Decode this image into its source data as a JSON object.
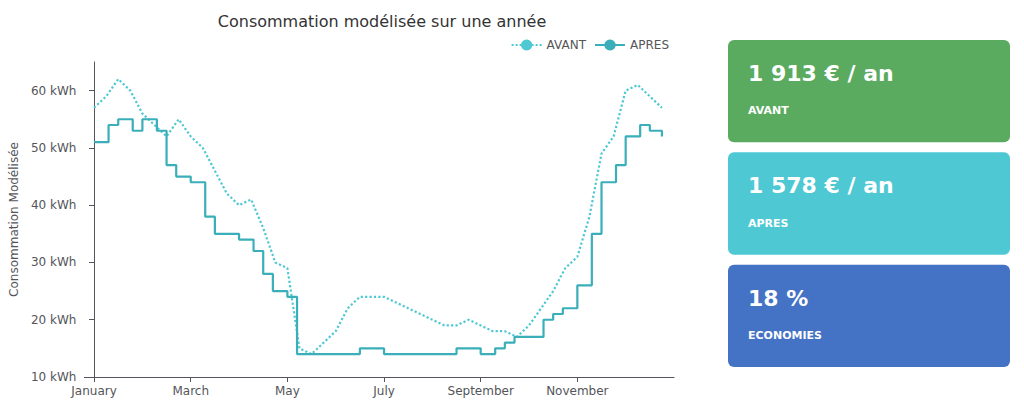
{
  "chart_data": {
    "type": "line",
    "title": "Consommation modélisée sur une année",
    "ylabel": "Consommation Modélisée",
    "xlim": [
      -0.2,
      12.0
    ],
    "xticks": [
      {
        "value": 0,
        "label": "January"
      },
      {
        "value": 2,
        "label": "March"
      },
      {
        "value": 4,
        "label": "May"
      },
      {
        "value": 6,
        "label": "July"
      },
      {
        "value": 8,
        "label": "September"
      },
      {
        "value": 10,
        "label": "November"
      }
    ],
    "ylim": [
      10,
      65
    ],
    "yticks": [
      {
        "value": 10,
        "label": "10 kWh"
      },
      {
        "value": 20,
        "label": "20 kWh"
      },
      {
        "value": 30,
        "label": "30 kWh"
      },
      {
        "value": 40,
        "label": "40 kWh"
      },
      {
        "value": 50,
        "label": "50 kWh"
      },
      {
        "value": 60,
        "label": "60 kWh"
      }
    ],
    "grid": false,
    "legend": "upper right",
    "series": [
      {
        "name": "AVANT",
        "type": "line",
        "line_style": "dotted",
        "color": "#4ec8d3",
        "x": [
          0,
          0.25,
          0.5,
          0.75,
          1.0,
          1.25,
          1.5,
          1.75,
          2.0,
          2.25,
          2.5,
          2.75,
          3.0,
          3.25,
          3.5,
          3.75,
          4.0,
          4.25,
          4.5,
          4.75,
          5.0,
          5.25,
          5.5,
          5.75,
          6.0,
          6.25,
          6.5,
          6.75,
          7.0,
          7.25,
          7.5,
          7.75,
          8.0,
          8.25,
          8.5,
          8.75,
          9.0,
          9.25,
          9.5,
          9.75,
          10.0,
          10.25,
          10.5,
          10.75,
          11.0,
          11.25,
          11.5,
          11.75
        ],
        "values": [
          57,
          59,
          62,
          60,
          56,
          54,
          52,
          55,
          52,
          50,
          46,
          42,
          40,
          41,
          36,
          30,
          29,
          15,
          14,
          16,
          18,
          22,
          24,
          24,
          24,
          23,
          22,
          21,
          20,
          19,
          19,
          20,
          19,
          18,
          18,
          17,
          19,
          22,
          25,
          29,
          31,
          38,
          49,
          52,
          60,
          61,
          59,
          57
        ]
      },
      {
        "name": "APRES",
        "type": "step",
        "line_style": "solid",
        "color": "#3aafb9",
        "x": [
          0,
          0.3,
          0.5,
          0.8,
          1.0,
          1.3,
          1.5,
          1.7,
          2.0,
          2.3,
          2.5,
          2.8,
          3.0,
          3.3,
          3.5,
          3.7,
          4.0,
          4.2,
          4.5,
          5.0,
          5.5,
          6.0,
          6.5,
          7.0,
          7.5,
          8.0,
          8.3,
          8.5,
          8.7,
          9.0,
          9.3,
          9.5,
          9.7,
          10.0,
          10.3,
          10.5,
          10.8,
          11.0,
          11.3,
          11.5,
          11.75
        ],
        "values": [
          51,
          54,
          55,
          53,
          55,
          53,
          47,
          45,
          44,
          38,
          35,
          35,
          34,
          32,
          28,
          25,
          24,
          14,
          14,
          14,
          15,
          14,
          14,
          14,
          15,
          14,
          15,
          16,
          17,
          17,
          20,
          21,
          22,
          26,
          35,
          44,
          47,
          52,
          54,
          53,
          52
        ]
      }
    ],
    "annotations": [
      {
        "text": "1 913 € / an",
        "subtext": "AVANT",
        "color": "#5aaa5f"
      },
      {
        "text": "1 578 € / an",
        "subtext": "APRES",
        "color": "#4ec8d3"
      },
      {
        "text": "18 %",
        "subtext": "ECONOMIES",
        "color": "#4472c4"
      }
    ]
  }
}
